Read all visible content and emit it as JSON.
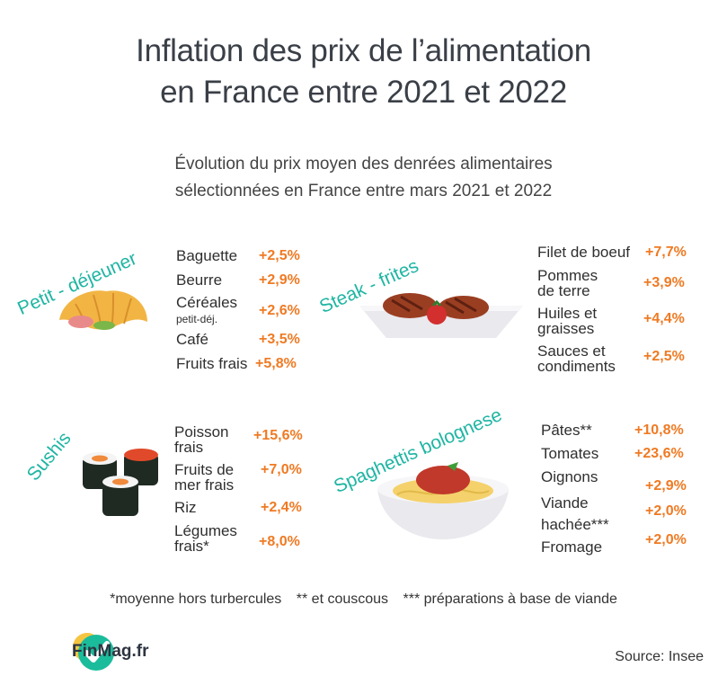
{
  "title": {
    "line1": "Inflation des prix de l’alimentation",
    "line2": "en France entre 2021 et 2022"
  },
  "subtitle": {
    "line1": "Évolution du prix moyen des denrées alimentaires",
    "line2": "sélectionnées en France entre mars 2021 et 2022"
  },
  "sections": {
    "petit_dejeuner": {
      "label": "Petit - déjeuner",
      "items": [
        {
          "name": "Baguette",
          "value": "+2,5%"
        },
        {
          "name": "Beurre",
          "value": "+2,9%"
        },
        {
          "name": "Céréales",
          "sub": "petit-déj.",
          "value": "+2,6%"
        },
        {
          "name": "Café",
          "value": "+3,5%"
        },
        {
          "name": "Fruits frais",
          "value": "+5,8%"
        }
      ]
    },
    "steak_frites": {
      "label": "Steak - frites",
      "items": [
        {
          "name": "Filet de boeuf",
          "value": "+7,7%"
        },
        {
          "name": "Pommes",
          "name2": "de terre",
          "value": "+3,9%"
        },
        {
          "name": "Huiles et",
          "name2": "graisses",
          "value": "+4,4%"
        },
        {
          "name": "Sauces et",
          "name2": "condiments",
          "value": "+2,5%"
        }
      ]
    },
    "sushis": {
      "label": "Sushis",
      "items": [
        {
          "name": "Poisson",
          "name2": "frais",
          "value": "+15,6%"
        },
        {
          "name": "Fruits de",
          "name2": "mer frais",
          "value": "+7,0%"
        },
        {
          "name": "Riz",
          "value": "+2,4%"
        },
        {
          "name": "Légumes",
          "name2": "frais*",
          "value": "+8,0%"
        }
      ]
    },
    "spaghettis": {
      "label": "Spaghettis bolognese",
      "items": [
        {
          "name": "Pâtes**",
          "value": "+10,8%"
        },
        {
          "name": "Tomates",
          "value": "+23,6%"
        },
        {
          "name": "Oignons",
          "value": "+2,9%"
        },
        {
          "name": "Viande",
          "name2": "hachée***",
          "value": "+2,0%"
        },
        {
          "name": "Fromage",
          "value": "+2,0%"
        }
      ]
    }
  },
  "footnotes": {
    "a": "*moyenne hors turbercules",
    "b": "** et couscous",
    "c": "*** préparations à base de viande"
  },
  "logo": {
    "text": "FinMag.fr",
    "icon": "checkmark-logo-icon"
  },
  "source": "Source: Insee",
  "colors": {
    "title": "#3a3f47",
    "accent_teal": "#1fb5a3",
    "value_orange": "#ef7a23",
    "logo_green": "#1abc9c",
    "logo_yellow": "#f5c542"
  }
}
